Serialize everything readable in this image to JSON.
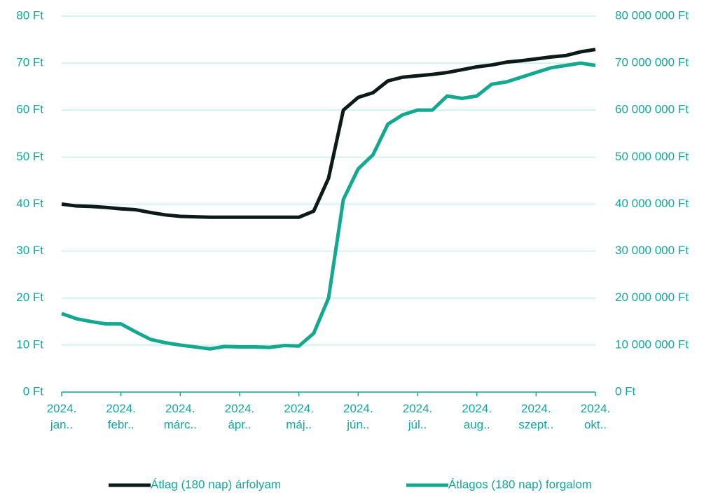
{
  "chart_data": {
    "type": "line",
    "categories": [
      "2024. jan..",
      null,
      null,
      null,
      "2024. febr..",
      null,
      null,
      null,
      "2024. márc..",
      null,
      null,
      null,
      "2024. ápr..",
      null,
      null,
      null,
      "2024. máj..",
      null,
      null,
      null,
      "2024. jún..",
      null,
      null,
      null,
      "2024. júl..",
      null,
      null,
      null,
      "2024. aug..",
      null,
      null,
      null,
      "2024. szept..",
      null,
      null,
      null,
      "2024. okt.."
    ],
    "series": [
      {
        "name": "Átlag (180 nap) árfolyam",
        "color": "#0d1a17",
        "axis": "y",
        "values": [
          40,
          39.6,
          39.5,
          39.3,
          39,
          38.8,
          38.2,
          37.7,
          37.4,
          37.3,
          37.2,
          37.2,
          37.2,
          37.2,
          37.2,
          37.2,
          37.2,
          38.5,
          45.5,
          60,
          62.7,
          63.7,
          66.2,
          67,
          67.3,
          67.6,
          68,
          68.6,
          69.2,
          69.6,
          70.2,
          70.5,
          70.9,
          71.3,
          71.6,
          72.4,
          72.9
        ]
      },
      {
        "name": "Átlagos (180 nap) forgalom",
        "color": "#13a88f",
        "axis": "y2",
        "values": [
          16700000,
          15600000,
          15000000,
          14500000,
          14500000,
          12800000,
          11200000,
          10500000,
          10000000,
          9600000,
          9200000,
          9700000,
          9600000,
          9600000,
          9500000,
          9900000,
          9800000,
          12500000,
          20000000,
          41000000,
          47500000,
          50500000,
          57000000,
          59000000,
          60000000,
          60000000,
          63000000,
          62500000,
          63000000,
          65500000,
          66000000,
          67000000,
          68000000,
          69000000,
          69500000,
          70000000,
          69500000
        ]
      }
    ],
    "ylim": [
      0,
      80
    ],
    "yticks": [
      {
        "value": 0,
        "label": "0 Ft"
      },
      {
        "value": 10,
        "label": "10 Ft"
      },
      {
        "value": 20,
        "label": "20 Ft"
      },
      {
        "value": 30,
        "label": "30 Ft"
      },
      {
        "value": 40,
        "label": "40 Ft"
      },
      {
        "value": 50,
        "label": "50 Ft"
      },
      {
        "value": 60,
        "label": "60 Ft"
      },
      {
        "value": 70,
        "label": "70 Ft"
      },
      {
        "value": 80,
        "label": "80 Ft"
      }
    ],
    "y2lim": [
      0,
      80000000
    ],
    "y2ticks": [
      {
        "value": 0,
        "label": "0 Ft"
      },
      {
        "value": 10000000,
        "label": "10 000 000 Ft"
      },
      {
        "value": 20000000,
        "label": "20 000 000 Ft"
      },
      {
        "value": 30000000,
        "label": "30 000 000 Ft"
      },
      {
        "value": 40000000,
        "label": "40 000 000 Ft"
      },
      {
        "value": 50000000,
        "label": "50 000 000 Ft"
      },
      {
        "value": 60000000,
        "label": "60 000 000 Ft"
      },
      {
        "value": 70000000,
        "label": "70 000 000 Ft"
      },
      {
        "value": 80000000,
        "label": "80 000 000 Ft"
      }
    ],
    "grid": true,
    "legend": "bottom"
  }
}
